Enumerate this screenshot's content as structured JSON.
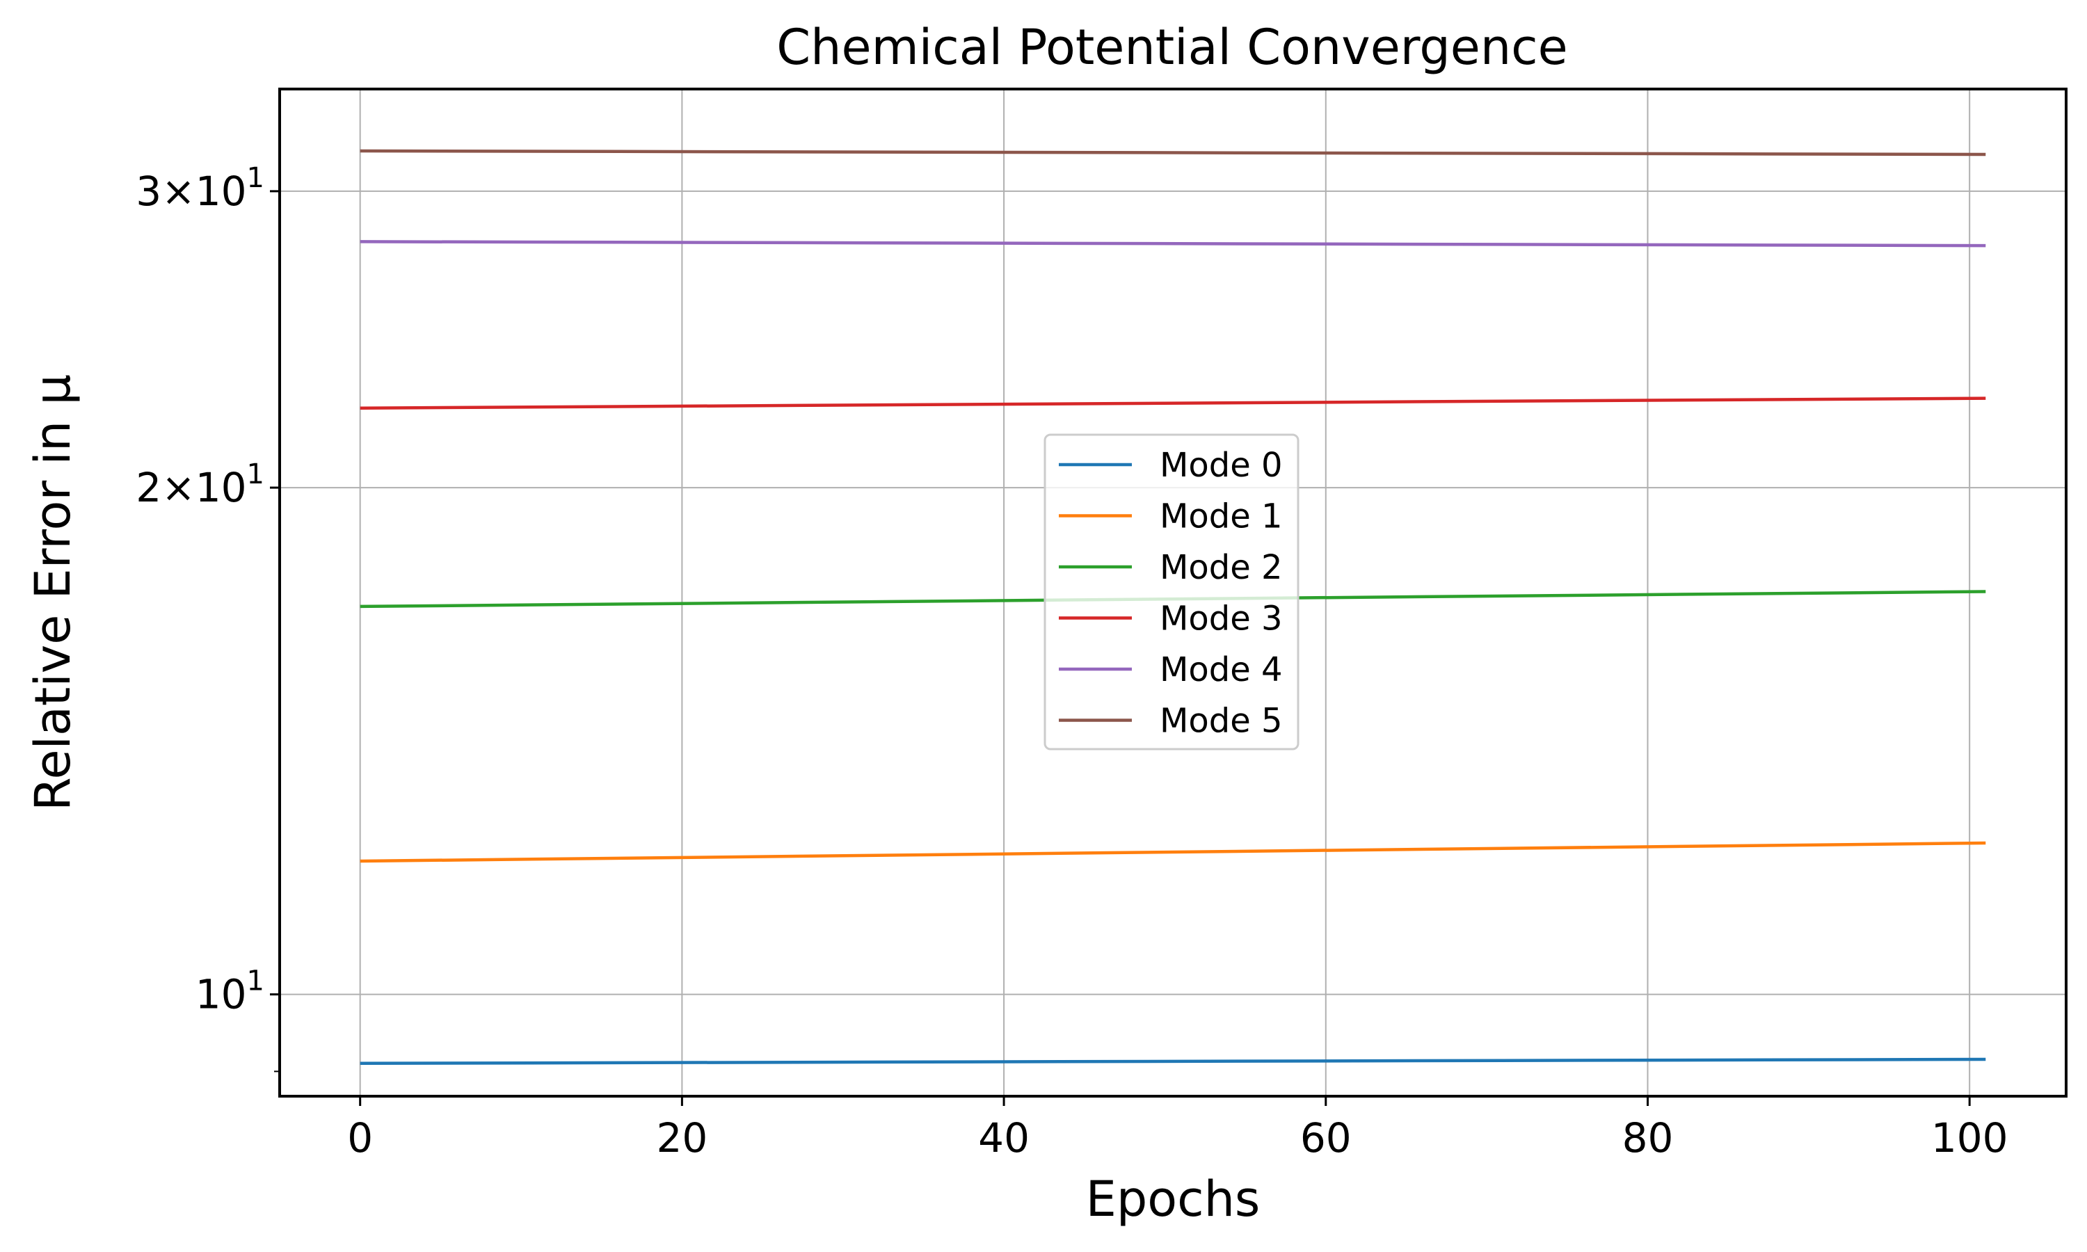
{
  "chart_data": {
    "type": "line",
    "title": "Chemical Potential Convergence",
    "xlabel": "Epochs",
    "ylabel": "Relative Error in μ",
    "xlim": [
      -5,
      106
    ],
    "ylim": [
      8.7,
      34.5
    ],
    "yscale": "log",
    "grid": true,
    "legend_position": "center",
    "xticks": [
      {
        "value": 0,
        "label": "0"
      },
      {
        "value": 20,
        "label": "20"
      },
      {
        "value": 40,
        "label": "40"
      },
      {
        "value": 60,
        "label": "60"
      },
      {
        "value": 80,
        "label": "80"
      },
      {
        "value": 100,
        "label": "100"
      }
    ],
    "yticks": [
      {
        "value": 10,
        "mant": "",
        "exp": "1"
      },
      {
        "value": 20,
        "mant": "2",
        "exp": "1"
      },
      {
        "value": 30,
        "mant": "3",
        "exp": "1"
      }
    ],
    "x": [
      0,
      101
    ],
    "series": [
      {
        "name": "Mode 0",
        "color": "#1f77b4",
        "values": [
          9.1,
          9.15
        ]
      },
      {
        "name": "Mode 1",
        "color": "#ff7f0e",
        "values": [
          12.0,
          12.3
        ]
      },
      {
        "name": "Mode 2",
        "color": "#2ca02c",
        "values": [
          17.0,
          17.35
        ]
      },
      {
        "name": "Mode 3",
        "color": "#d62728",
        "values": [
          22.3,
          22.6
        ]
      },
      {
        "name": "Mode 4",
        "color": "#9467bd",
        "values": [
          28.0,
          27.85
        ]
      },
      {
        "name": "Mode 5",
        "color": "#8c564b",
        "values": [
          31.7,
          31.55
        ]
      }
    ]
  }
}
